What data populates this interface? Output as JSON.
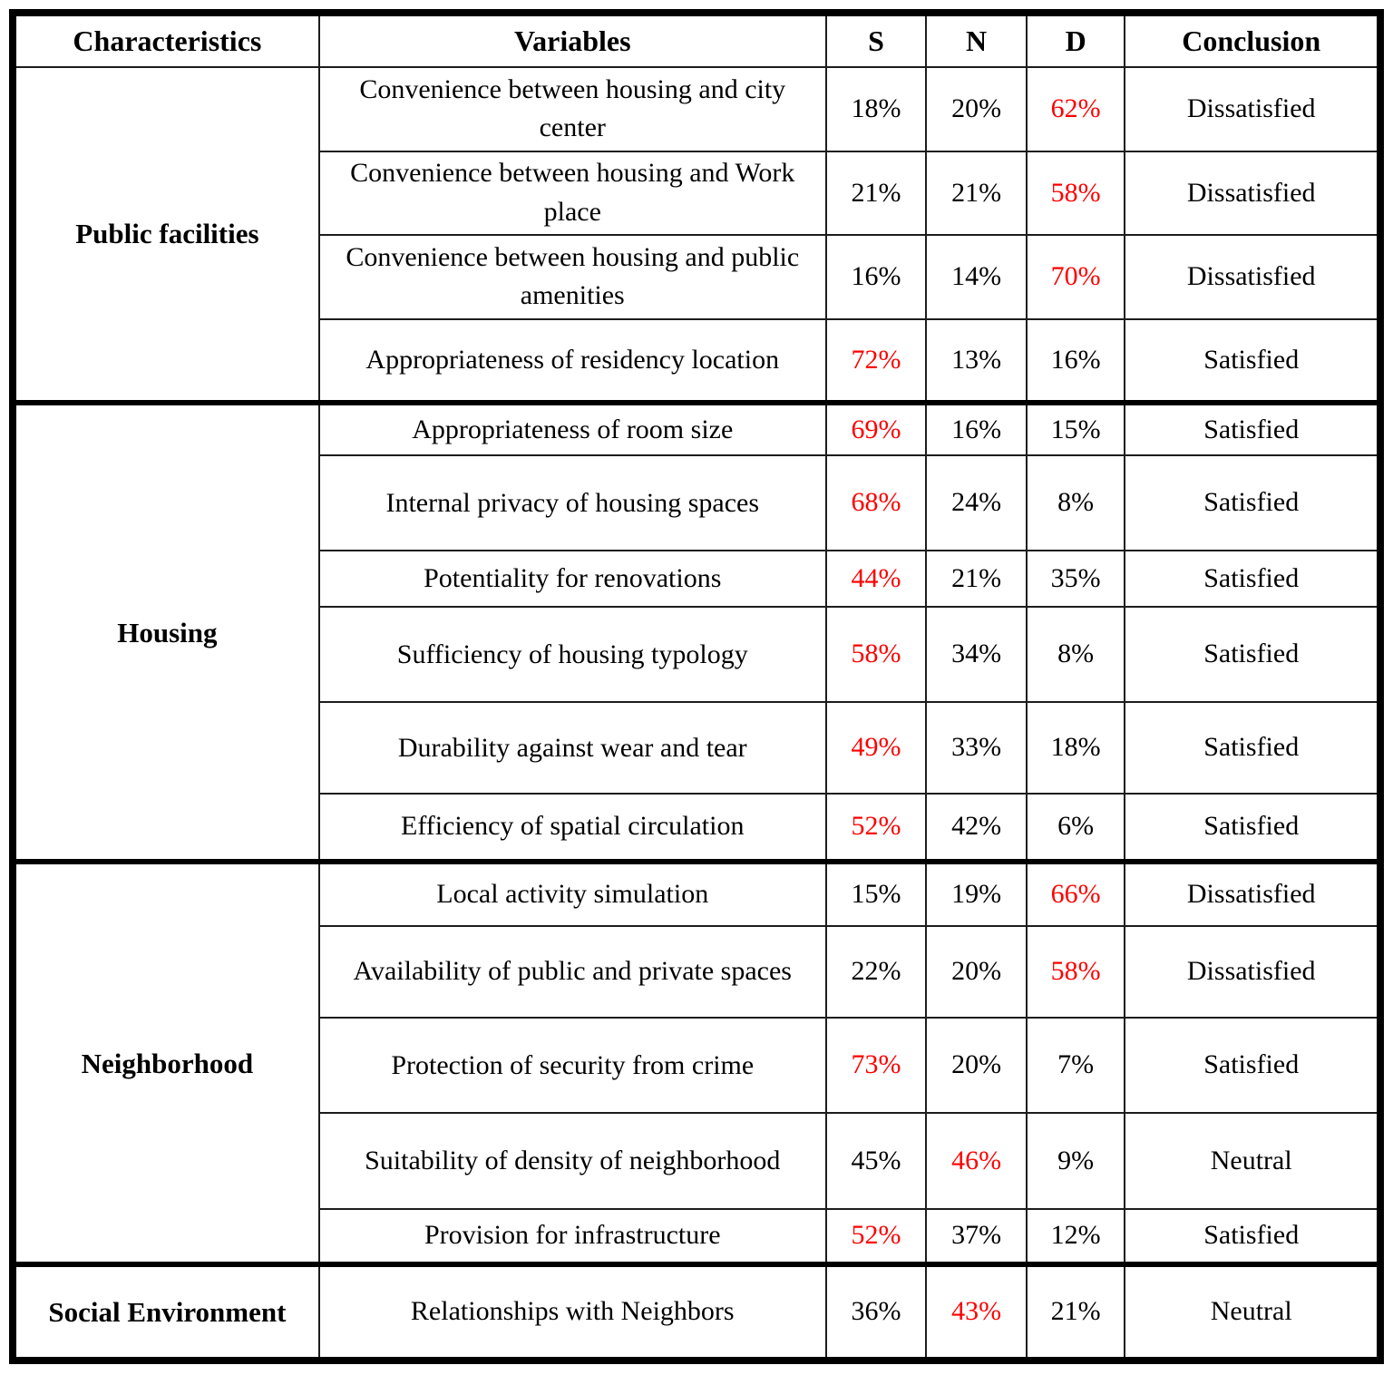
{
  "table": {
    "headers": [
      "Characteristics",
      "Variables",
      "S",
      "N",
      "D",
      "Conclusion"
    ],
    "colors": {
      "highlight": "#fe0000",
      "text": "#000000",
      "border": "#000000"
    },
    "groups": [
      {
        "characteristic": "Public facilities",
        "rows": [
          {
            "variable": "Convenience between housing and city center",
            "s": {
              "text": "18%",
              "cls": "black"
            },
            "n": {
              "text": "20%",
              "cls": "black"
            },
            "d": {
              "text": "62%",
              "cls": "red"
            },
            "conclusion": "Dissatisfied"
          },
          {
            "variable": "Convenience between housing and Work place",
            "s": {
              "text": "21%",
              "cls": "black"
            },
            "n": {
              "text": "21%",
              "cls": "black"
            },
            "d": {
              "text": "58%",
              "cls": "red"
            },
            "conclusion": "Dissatisfied"
          },
          {
            "variable": "Convenience between housing and public amenities",
            "s": {
              "text": "16%",
              "cls": "black"
            },
            "n": {
              "text": "14%",
              "cls": "black"
            },
            "d": {
              "text": "70%",
              "cls": "red"
            },
            "conclusion": "Dissatisfied"
          },
          {
            "variable": "Appropriateness of residency location",
            "s": {
              "text": "72%",
              "cls": "red"
            },
            "n": {
              "text": "13%",
              "cls": "black"
            },
            "d": {
              "text": "16%",
              "cls": "black"
            },
            "conclusion": "Satisfied"
          }
        ]
      },
      {
        "characteristic": "Housing",
        "rows": [
          {
            "variable": "Appropriateness of room size",
            "s": {
              "text": "69%",
              "cls": "red"
            },
            "n": {
              "text": "16%",
              "cls": "black"
            },
            "d": {
              "text": "15%",
              "cls": "black"
            },
            "conclusion": "Satisfied"
          },
          {
            "variable": "Internal privacy of housing spaces",
            "s": {
              "text": "68%",
              "cls": "red"
            },
            "n": {
              "text": "24%",
              "cls": "black"
            },
            "d": {
              "text": "8%",
              "cls": "black"
            },
            "conclusion": "Satisfied"
          },
          {
            "variable": "Potentiality for renovations",
            "s": {
              "text": "44%",
              "cls": "red"
            },
            "n": {
              "text": "21%",
              "cls": "black"
            },
            "d": {
              "text": "35%",
              "cls": "black"
            },
            "conclusion": "Satisfied"
          },
          {
            "variable": "Sufficiency of housing typology",
            "s": {
              "text": "58%",
              "cls": "red"
            },
            "n": {
              "text": "34%",
              "cls": "black"
            },
            "d": {
              "text": "8%",
              "cls": "black"
            },
            "conclusion": "Satisfied"
          },
          {
            "variable": "Durability against wear and tear",
            "s": {
              "text": "49%",
              "cls": "red"
            },
            "n": {
              "text": "33%",
              "cls": "black"
            },
            "d": {
              "text": "18%",
              "cls": "black"
            },
            "conclusion": "Satisfied"
          },
          {
            "variable": "Efficiency of spatial circulation",
            "s": {
              "text": "52%",
              "cls": "red"
            },
            "n": {
              "text": "42%",
              "cls": "black"
            },
            "d": {
              "text": "6%",
              "cls": "black"
            },
            "conclusion": "Satisfied"
          }
        ]
      },
      {
        "characteristic": "Neighborhood",
        "rows": [
          {
            "variable": "Local activity simulation",
            "s": {
              "text": "15%",
              "cls": "black"
            },
            "n": {
              "text": "19%",
              "cls": "black"
            },
            "d": {
              "text": "66%",
              "cls": "red"
            },
            "conclusion": "Dissatisfied"
          },
          {
            "variable": "Availability of public and private spaces",
            "s": {
              "text": "22%",
              "cls": "black"
            },
            "n": {
              "text": "20%",
              "cls": "black"
            },
            "d": {
              "text": "58%",
              "cls": "red"
            },
            "conclusion": "Dissatisfied"
          },
          {
            "variable": "Protection of security from crime",
            "s": {
              "text": "73%",
              "cls": "red"
            },
            "n": {
              "text": "20%",
              "cls": "black"
            },
            "d": {
              "text": "7%",
              "cls": "black"
            },
            "conclusion": "Satisfied"
          },
          {
            "variable": "Suitability of density of neighborhood",
            "s": {
              "text": "45%",
              "cls": "black"
            },
            "n": {
              "text": "46%",
              "cls": "red"
            },
            "d": {
              "text": "9%",
              "cls": "black"
            },
            "conclusion": "Neutral"
          },
          {
            "variable": "Provision for infrastructure",
            "s": {
              "text": "52%",
              "cls": "red"
            },
            "n": {
              "text": "37%",
              "cls": "black"
            },
            "d": {
              "text": "12%",
              "cls": "black"
            },
            "conclusion": "Satisfied"
          }
        ]
      },
      {
        "characteristic": "Social Environment",
        "rows": [
          {
            "variable": "Relationships with Neighbors",
            "s": {
              "text": "36%",
              "cls": "black"
            },
            "n": {
              "text": "43%",
              "cls": "red"
            },
            "d": {
              "text": "21%",
              "cls": "black"
            },
            "conclusion": "Neutral"
          }
        ]
      }
    ]
  }
}
